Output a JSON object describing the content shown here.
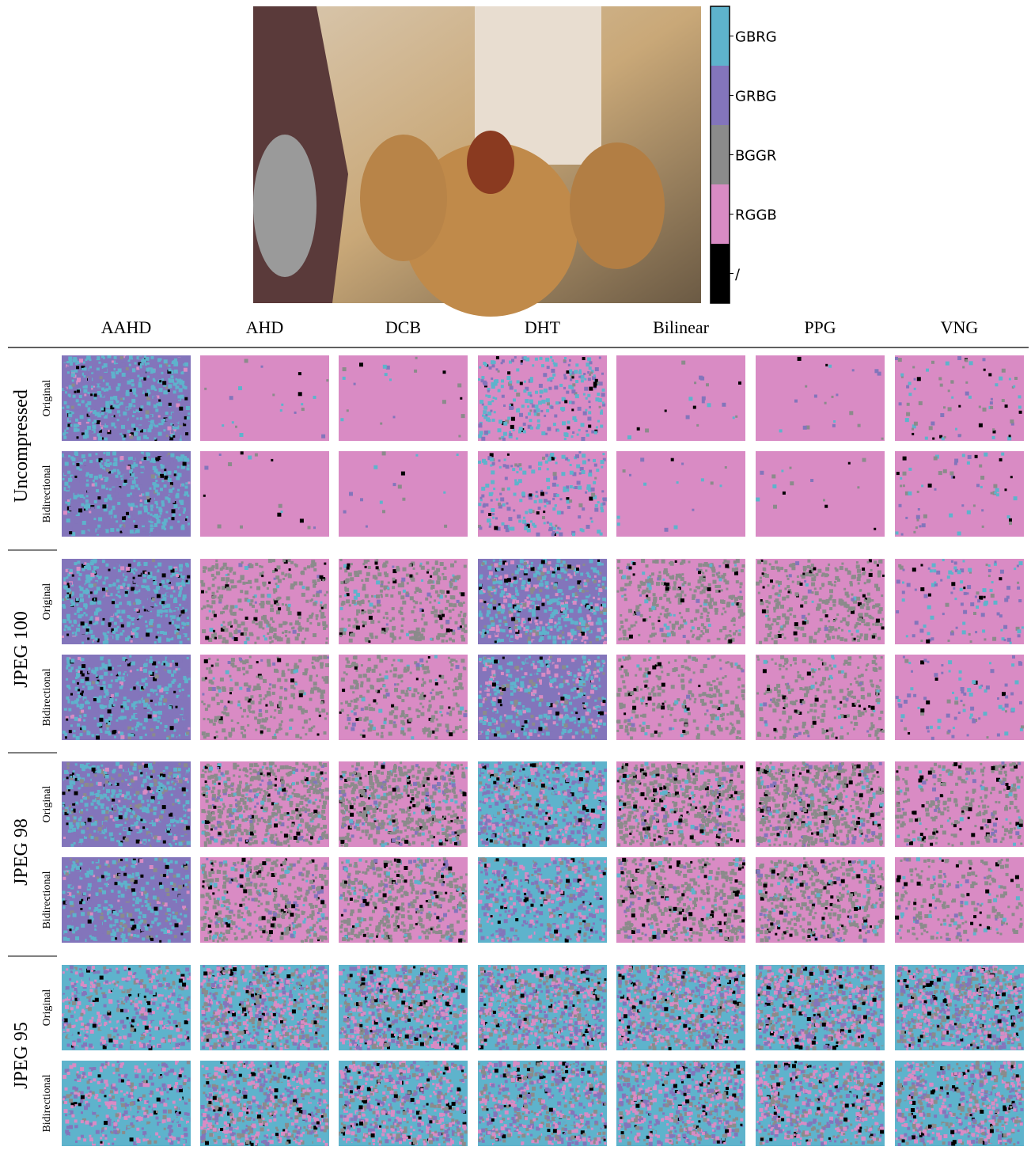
{
  "figure": {
    "legend": [
      {
        "label": "GBRG",
        "color": "#5eb3cc"
      },
      {
        "label": "GRBG",
        "color": "#8375bb"
      },
      {
        "label": "BGGR",
        "color": "#8b8b8b"
      },
      {
        "label": "RGGB",
        "color": "#d98bc4"
      },
      {
        "label": "/",
        "color": "#000000"
      }
    ],
    "columns": [
      "AAHD",
      "AHD",
      "DCB",
      "DHT",
      "Bilinear",
      "PPG",
      "VNG"
    ],
    "groups": [
      {
        "label": "Uncompressed",
        "rows": [
          "Original",
          "Bidirectional"
        ]
      },
      {
        "label": "JPEG 100",
        "rows": [
          "Original",
          "Bidirectional"
        ]
      },
      {
        "label": "JPEG 98",
        "rows": [
          "Original",
          "Bidirectional"
        ]
      },
      {
        "label": "JPEG 95",
        "rows": [
          "Original",
          "Bidirectional"
        ]
      }
    ]
  }
}
